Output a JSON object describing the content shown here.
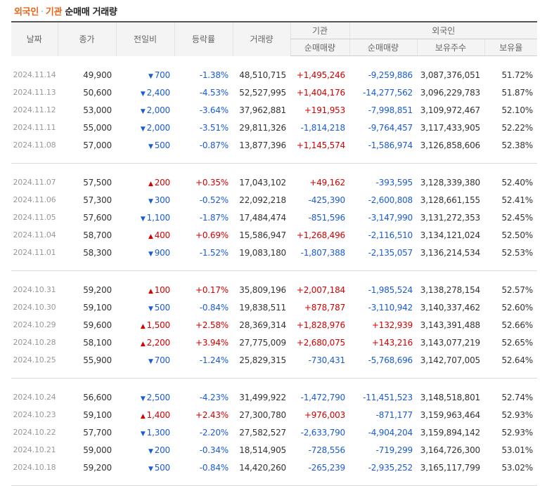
{
  "title": {
    "part1": "외국인",
    "dot": "·",
    "part2": "기관",
    "part3": "순매매 거래량"
  },
  "headers": {
    "date": "날짜",
    "close": "종가",
    "change": "전일비",
    "rate": "등락률",
    "volume": "거래량",
    "inst": "기관",
    "inst_net": "순매매량",
    "foreign": "외국인",
    "foreign_net": "순매매량",
    "foreign_hold": "보유주수",
    "foreign_ratio": "보유율"
  },
  "colors": {
    "up": "#d40000",
    "down": "#1a5bd6",
    "accent": "#e8661a"
  },
  "groups": [
    [
      {
        "date": "2024.11.14",
        "close": "49,900",
        "dir": "down",
        "change": "700",
        "rate": "-1.38%",
        "volume": "48,510,715",
        "inst": "+1,495,246",
        "foreign": "-9,259,886",
        "hold": "3,087,376,051",
        "ratio": "51.72%"
      },
      {
        "date": "2024.11.13",
        "close": "50,600",
        "dir": "down",
        "change": "2,400",
        "rate": "-4.53%",
        "volume": "52,527,995",
        "inst": "+1,404,176",
        "foreign": "-14,277,562",
        "hold": "3,096,229,783",
        "ratio": "51.87%"
      },
      {
        "date": "2024.11.12",
        "close": "53,000",
        "dir": "down",
        "change": "2,000",
        "rate": "-3.64%",
        "volume": "37,962,881",
        "inst": "+191,953",
        "foreign": "-7,998,851",
        "hold": "3,109,972,467",
        "ratio": "52.10%"
      },
      {
        "date": "2024.11.11",
        "close": "55,000",
        "dir": "down",
        "change": "2,000",
        "rate": "-3.51%",
        "volume": "29,811,326",
        "inst": "-1,814,218",
        "foreign": "-9,764,457",
        "hold": "3,117,433,905",
        "ratio": "52.22%"
      },
      {
        "date": "2024.11.08",
        "close": "57,000",
        "dir": "down",
        "change": "500",
        "rate": "-0.87%",
        "volume": "13,877,396",
        "inst": "+1,145,574",
        "foreign": "-1,586,974",
        "hold": "3,126,858,606",
        "ratio": "52.38%"
      }
    ],
    [
      {
        "date": "2024.11.07",
        "close": "57,500",
        "dir": "up",
        "change": "200",
        "rate": "+0.35%",
        "volume": "17,043,102",
        "inst": "+49,162",
        "foreign": "-393,595",
        "hold": "3,128,339,380",
        "ratio": "52.40%"
      },
      {
        "date": "2024.11.06",
        "close": "57,300",
        "dir": "down",
        "change": "300",
        "rate": "-0.52%",
        "volume": "22,092,218",
        "inst": "-425,390",
        "foreign": "-2,600,808",
        "hold": "3,128,661,155",
        "ratio": "52.41%"
      },
      {
        "date": "2024.11.05",
        "close": "57,600",
        "dir": "down",
        "change": "1,100",
        "rate": "-1.87%",
        "volume": "17,484,474",
        "inst": "-851,596",
        "foreign": "-3,147,990",
        "hold": "3,131,272,353",
        "ratio": "52.45%"
      },
      {
        "date": "2024.11.04",
        "close": "58,700",
        "dir": "up",
        "change": "400",
        "rate": "+0.69%",
        "volume": "15,586,947",
        "inst": "+1,268,496",
        "foreign": "-2,116,510",
        "hold": "3,134,121,024",
        "ratio": "52.50%"
      },
      {
        "date": "2024.11.01",
        "close": "58,300",
        "dir": "down",
        "change": "900",
        "rate": "-1.52%",
        "volume": "19,083,180",
        "inst": "-1,807,388",
        "foreign": "-2,135,057",
        "hold": "3,136,214,534",
        "ratio": "52.53%"
      }
    ],
    [
      {
        "date": "2024.10.31",
        "close": "59,200",
        "dir": "up",
        "change": "100",
        "rate": "+0.17%",
        "volume": "35,809,196",
        "inst": "+2,007,184",
        "foreign": "-1,985,524",
        "hold": "3,138,278,154",
        "ratio": "52.57%"
      },
      {
        "date": "2024.10.30",
        "close": "59,100",
        "dir": "down",
        "change": "500",
        "rate": "-0.84%",
        "volume": "19,838,511",
        "inst": "+878,787",
        "foreign": "-3,110,942",
        "hold": "3,140,337,462",
        "ratio": "52.60%"
      },
      {
        "date": "2024.10.29",
        "close": "59,600",
        "dir": "up",
        "change": "1,500",
        "rate": "+2.58%",
        "volume": "28,369,314",
        "inst": "+1,828,976",
        "foreign": "+132,939",
        "hold": "3,143,391,488",
        "ratio": "52.66%"
      },
      {
        "date": "2024.10.28",
        "close": "58,100",
        "dir": "up",
        "change": "2,200",
        "rate": "+3.94%",
        "volume": "27,775,009",
        "inst": "+2,680,075",
        "foreign": "+143,216",
        "hold": "3,143,077,219",
        "ratio": "52.65%"
      },
      {
        "date": "2024.10.25",
        "close": "55,900",
        "dir": "down",
        "change": "700",
        "rate": "-1.24%",
        "volume": "25,829,315",
        "inst": "-730,431",
        "foreign": "-5,768,696",
        "hold": "3,142,707,005",
        "ratio": "52.64%"
      }
    ],
    [
      {
        "date": "2024.10.24",
        "close": "56,600",
        "dir": "down",
        "change": "2,500",
        "rate": "-4.23%",
        "volume": "31,499,922",
        "inst": "-1,472,790",
        "foreign": "-11,451,523",
        "hold": "3,148,518,801",
        "ratio": "52.74%"
      },
      {
        "date": "2024.10.23",
        "close": "59,100",
        "dir": "up",
        "change": "1,400",
        "rate": "+2.43%",
        "volume": "27,300,780",
        "inst": "+976,003",
        "foreign": "-871,177",
        "hold": "3,159,963,464",
        "ratio": "52.93%"
      },
      {
        "date": "2024.10.22",
        "close": "57,700",
        "dir": "down",
        "change": "1,300",
        "rate": "-2.20%",
        "volume": "27,582,527",
        "inst": "-2,633,790",
        "foreign": "-4,904,204",
        "hold": "3,159,894,142",
        "ratio": "52.93%"
      },
      {
        "date": "2024.10.21",
        "close": "59,000",
        "dir": "down",
        "change": "200",
        "rate": "-0.34%",
        "volume": "18,514,905",
        "inst": "-728,556",
        "foreign": "-719,299",
        "hold": "3,164,726,300",
        "ratio": "53.01%"
      },
      {
        "date": "2024.10.18",
        "close": "59,200",
        "dir": "down",
        "change": "500",
        "rate": "-0.84%",
        "volume": "14,420,260",
        "inst": "-265,239",
        "foreign": "-2,935,252",
        "hold": "3,165,117,799",
        "ratio": "53.02%"
      }
    ]
  ]
}
